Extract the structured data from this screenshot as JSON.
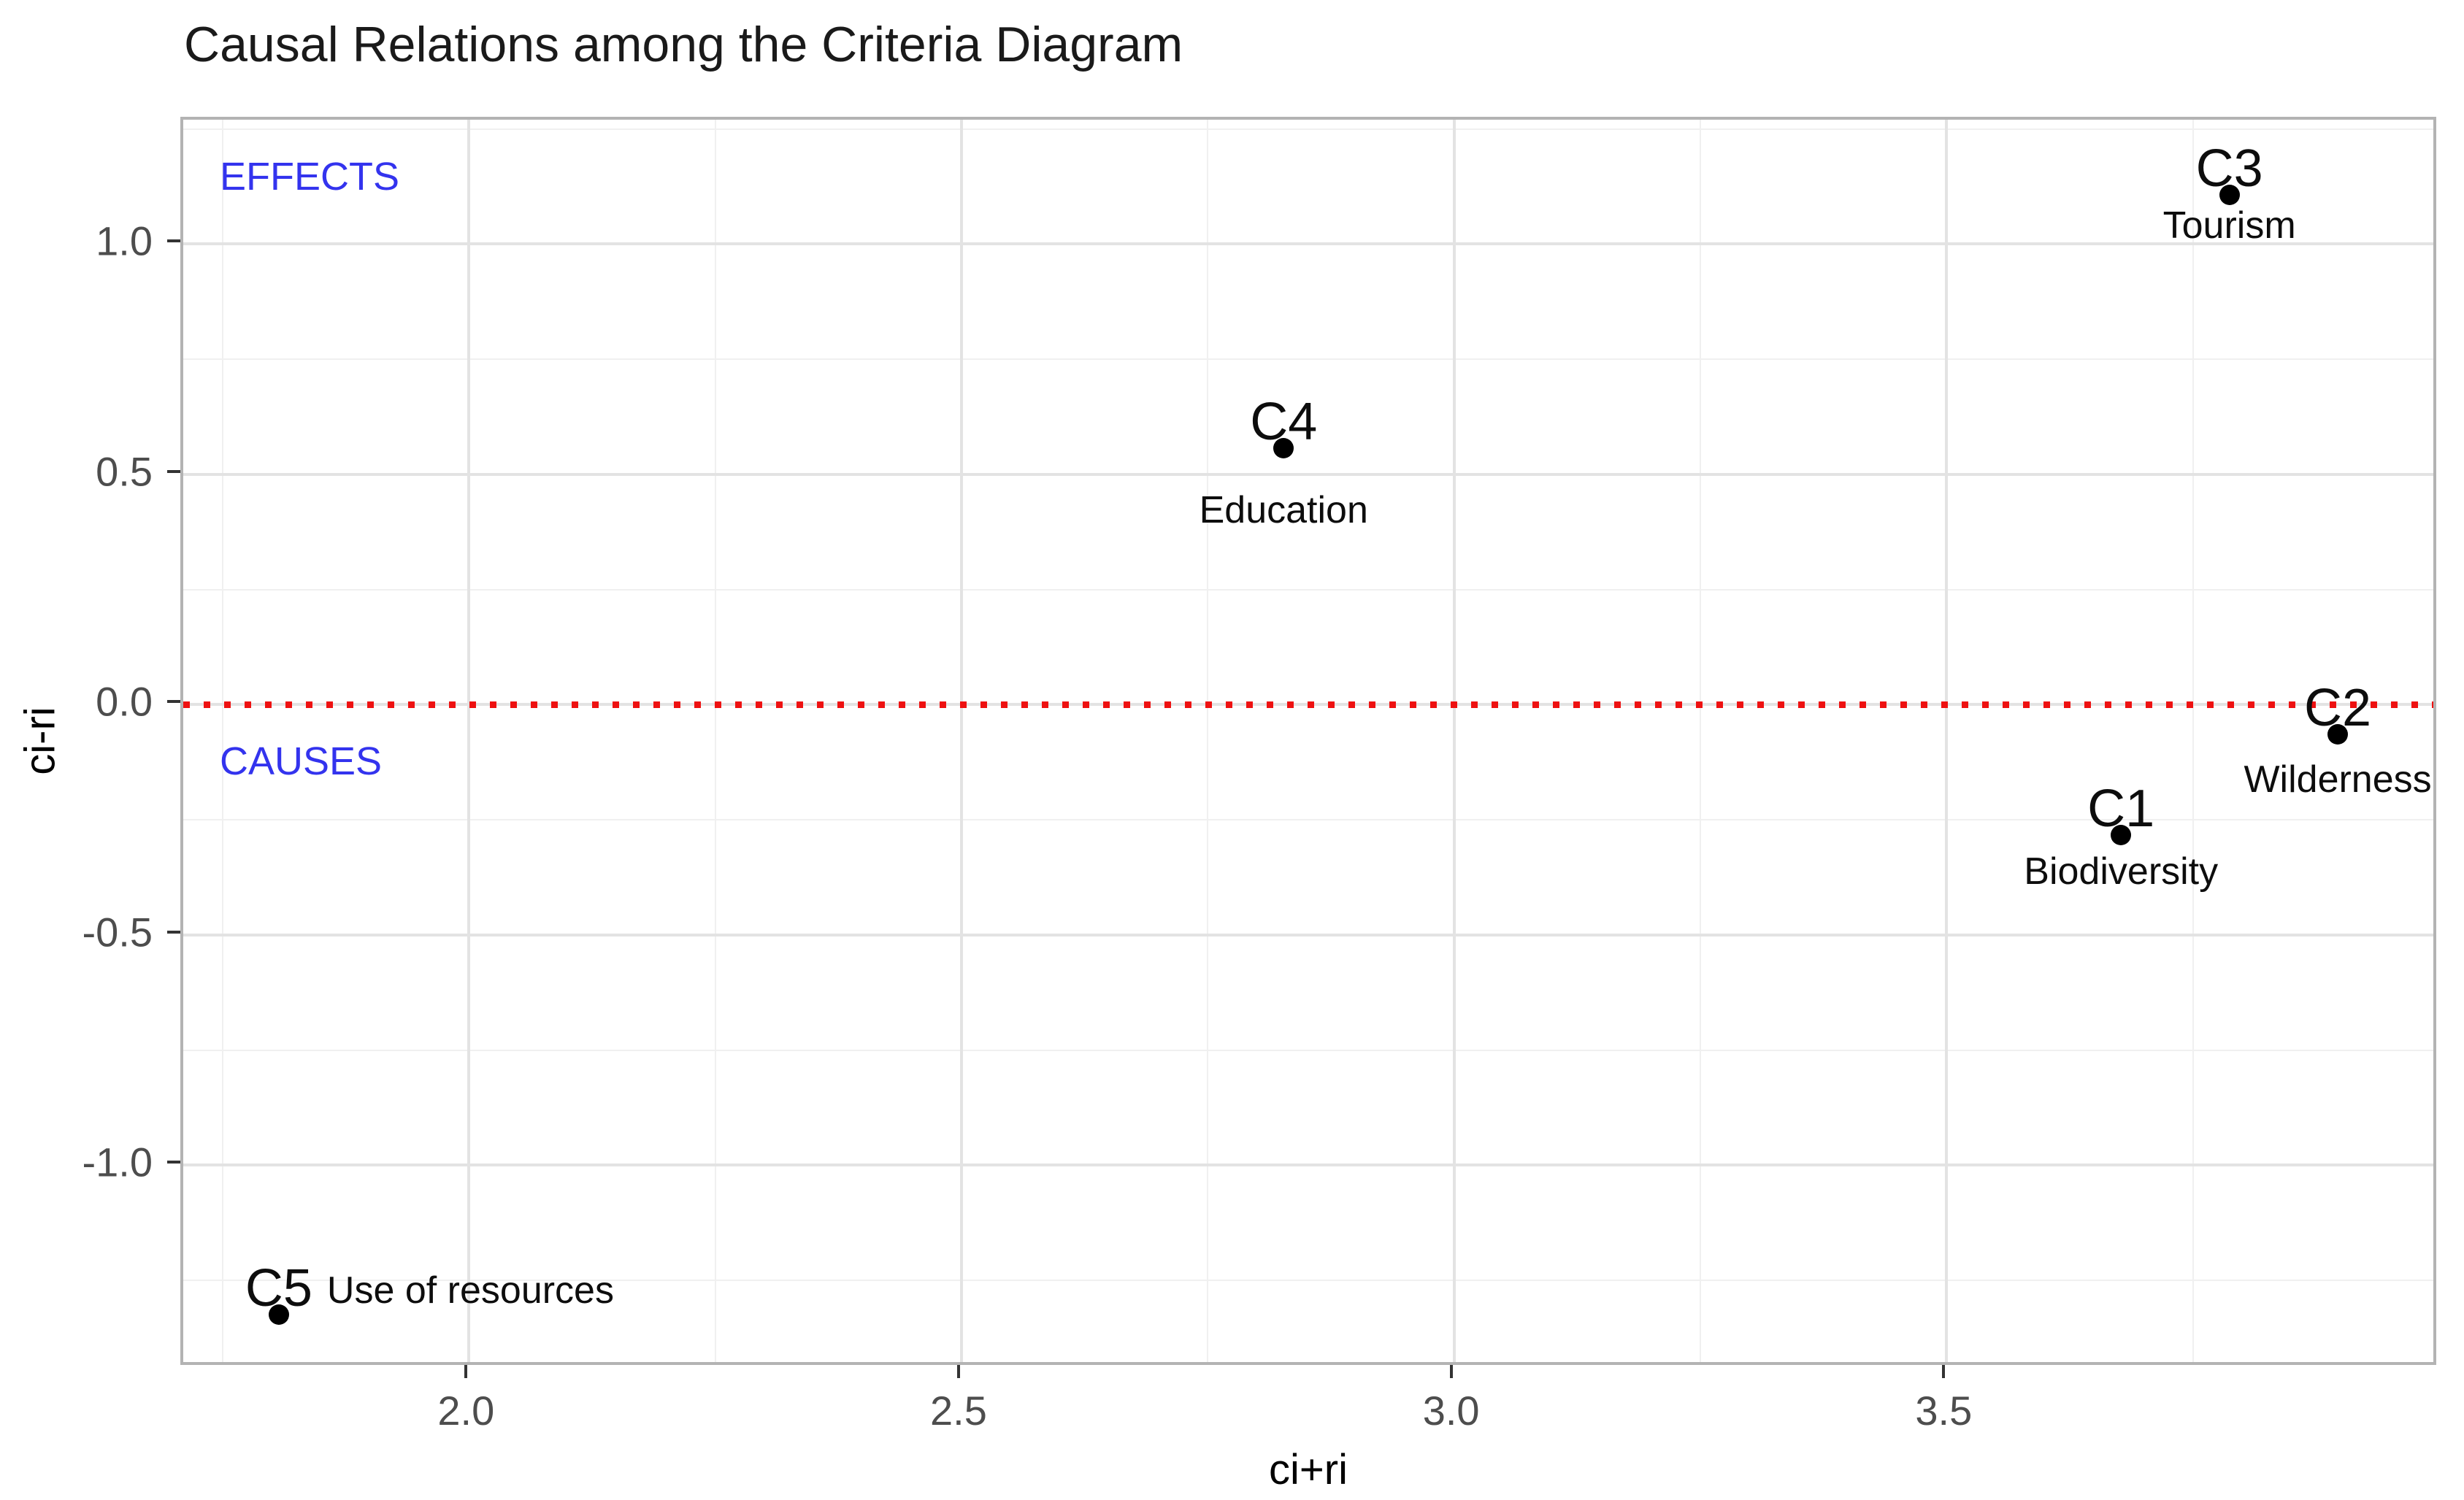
{
  "page": {
    "background": "#ffffff"
  },
  "chart_data": {
    "type": "scatter",
    "title": "Causal Relations among the Criteria Diagram",
    "xlabel": "ci+ri",
    "ylabel": "ci-ri",
    "xlim": [
      1.71,
      4.0
    ],
    "ylim": [
      -1.44,
      1.27
    ],
    "x_ticks": [
      2.0,
      2.5,
      3.0,
      3.5
    ],
    "x_tick_labels": [
      "2.0",
      "2.5",
      "3.0",
      "3.5"
    ],
    "y_ticks": [
      1.0,
      0.5,
      0.0,
      -0.5,
      -1.0
    ],
    "y_tick_labels": [
      "1.0",
      "0.5",
      "0.0",
      "-0.5",
      "-1.0"
    ],
    "x_minor_ticks": [
      1.75,
      2.25,
      2.75,
      3.25,
      3.75
    ],
    "y_minor_ticks": [
      1.25,
      0.75,
      0.25,
      -0.25,
      -0.75,
      -1.25
    ],
    "grid": "major+minor",
    "legend": "none",
    "points": [
      {
        "id": "C1",
        "label": "C1",
        "name": "Biodiversity",
        "x": 3.68,
        "y": -0.29,
        "name_position": "below"
      },
      {
        "id": "C2",
        "label": "C2",
        "name": "Wilderness",
        "x": 3.9,
        "y": -0.07,
        "name_position": "below"
      },
      {
        "id": "C3",
        "label": "C3",
        "name": "Tourism",
        "x": 3.79,
        "y": 1.1,
        "name_position": "below"
      },
      {
        "id": "C4",
        "label": "C4",
        "name": "Education",
        "x": 2.83,
        "y": 0.55,
        "name_position": "below"
      },
      {
        "id": "C5",
        "label": "C5",
        "name": "Use of resources",
        "x": 1.81,
        "y": -1.33,
        "name_position": "right"
      }
    ],
    "reference_line": {
      "axis": "y",
      "value": 0.0,
      "style": "dotted",
      "color": "#ee1111"
    },
    "annotations": [
      {
        "id": "effects",
        "label": "EFFECTS",
        "x": 1.75,
        "y": 1.14,
        "color": "#3333ee"
      },
      {
        "id": "causes",
        "label": "CAUSES",
        "x": 1.75,
        "y": -0.13,
        "color": "#3333ee"
      }
    ],
    "colors": {
      "point": "#000000",
      "grid_major": "#e3e3e3",
      "grid_minor": "#f0f0f0",
      "panel_border": "#b3b3b3",
      "tick": "#333333",
      "tick_label": "#4d4d4d",
      "title": "#1a1a1a",
      "axis_title": "#000000",
      "annotation": "#3333ee",
      "reference_line": "#ee1111",
      "background": "#ffffff"
    }
  }
}
